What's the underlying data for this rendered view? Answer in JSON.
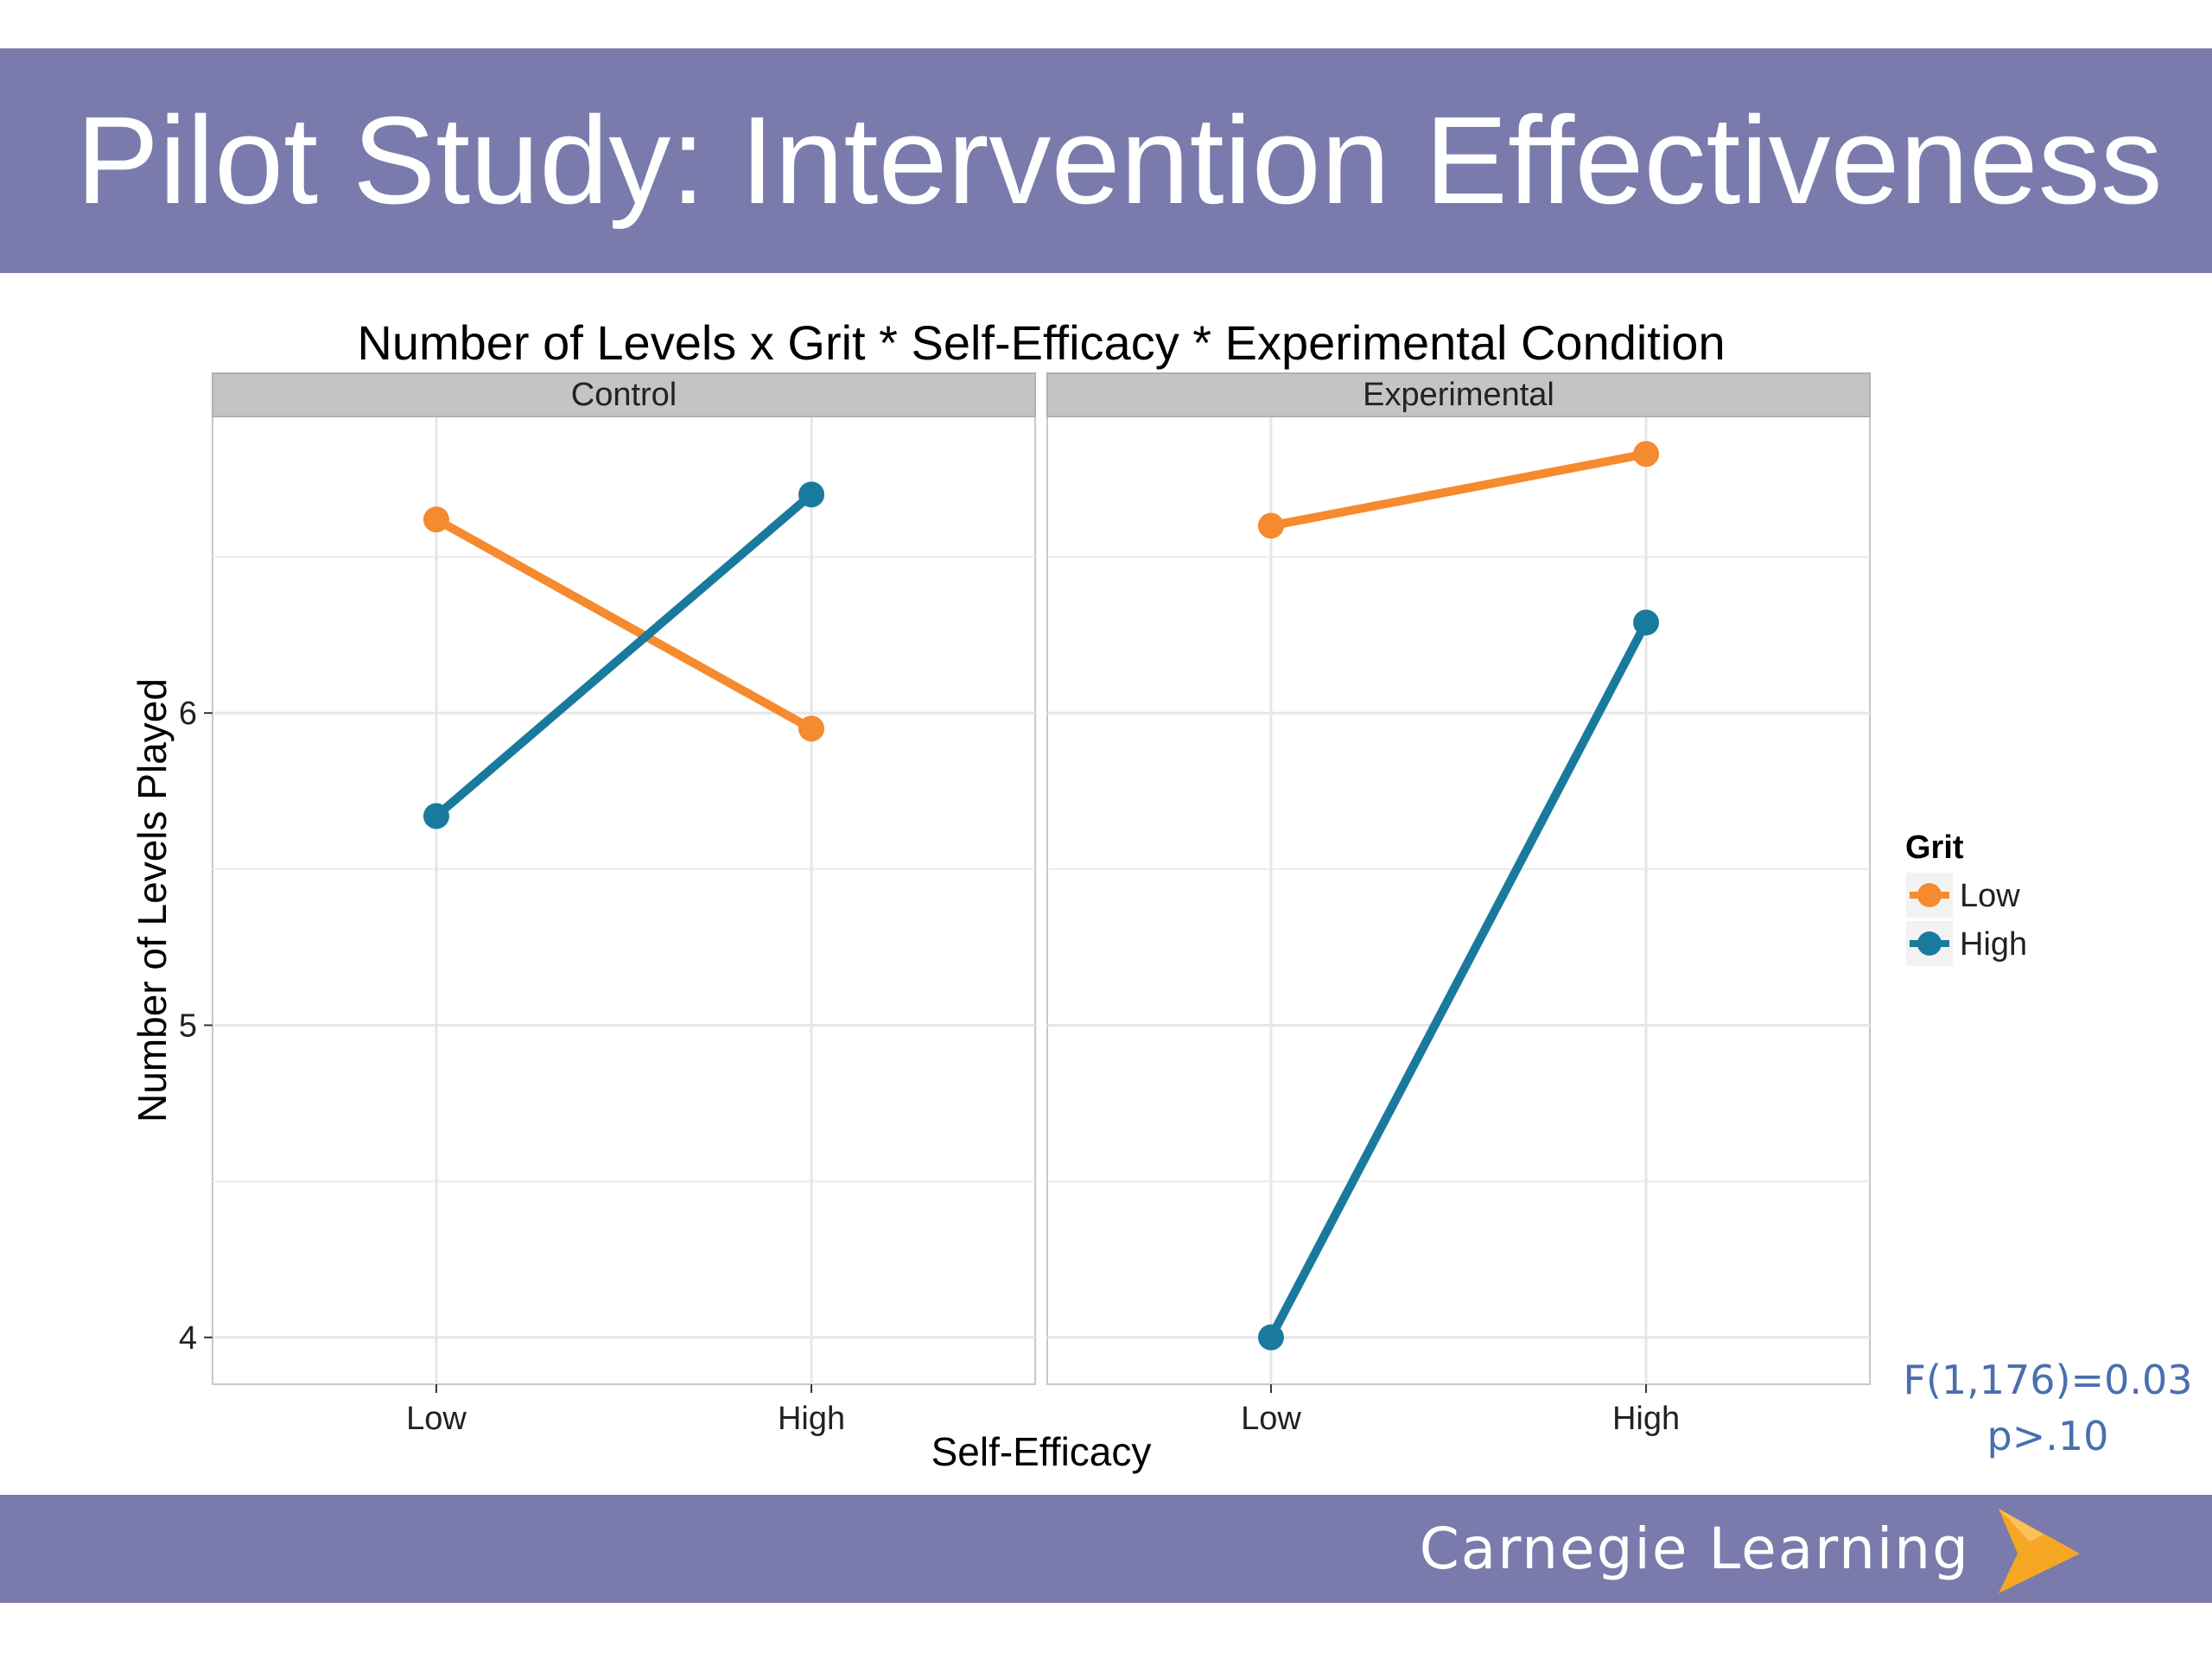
{
  "slide": {
    "title": "Pilot Study: Intervention Effectiveness",
    "footer_brand": "Carnegie Learning"
  },
  "statistics": {
    "line1": "F(1,176)=0.03",
    "line2": "p>.10"
  },
  "colors": {
    "band": "#7a7bac",
    "low_series": "#f58a2e",
    "high_series": "#1a7a9e",
    "stat_text": "#4a6fae",
    "brand_mark": "#f5a623"
  },
  "icons": {
    "brand": "chevron-right-icon"
  },
  "chart_data": {
    "type": "line",
    "title": "Number of Levels x Grit * Self-Efficacy * Experimental Condition",
    "xlabel": "Self-Efficacy",
    "ylabel": "Number of Levels Played",
    "categories": [
      "Low",
      "High"
    ],
    "yticks": [
      "4",
      "5",
      "6"
    ],
    "ylim": [
      3.85,
      6.95
    ],
    "grid": true,
    "legend": {
      "title": "Grit",
      "position": "right",
      "entries": [
        "Low",
        "High"
      ]
    },
    "panels": [
      {
        "label": "Control",
        "series": [
          {
            "name": "Low",
            "values": [
              6.62,
              5.95
            ]
          },
          {
            "name": "High",
            "values": [
              5.67,
              6.7
            ]
          }
        ]
      },
      {
        "label": "Experimental",
        "series": [
          {
            "name": "Low",
            "values": [
              6.6,
              6.83
            ]
          },
          {
            "name": "High",
            "values": [
              4.0,
              6.29
            ]
          }
        ]
      }
    ]
  }
}
